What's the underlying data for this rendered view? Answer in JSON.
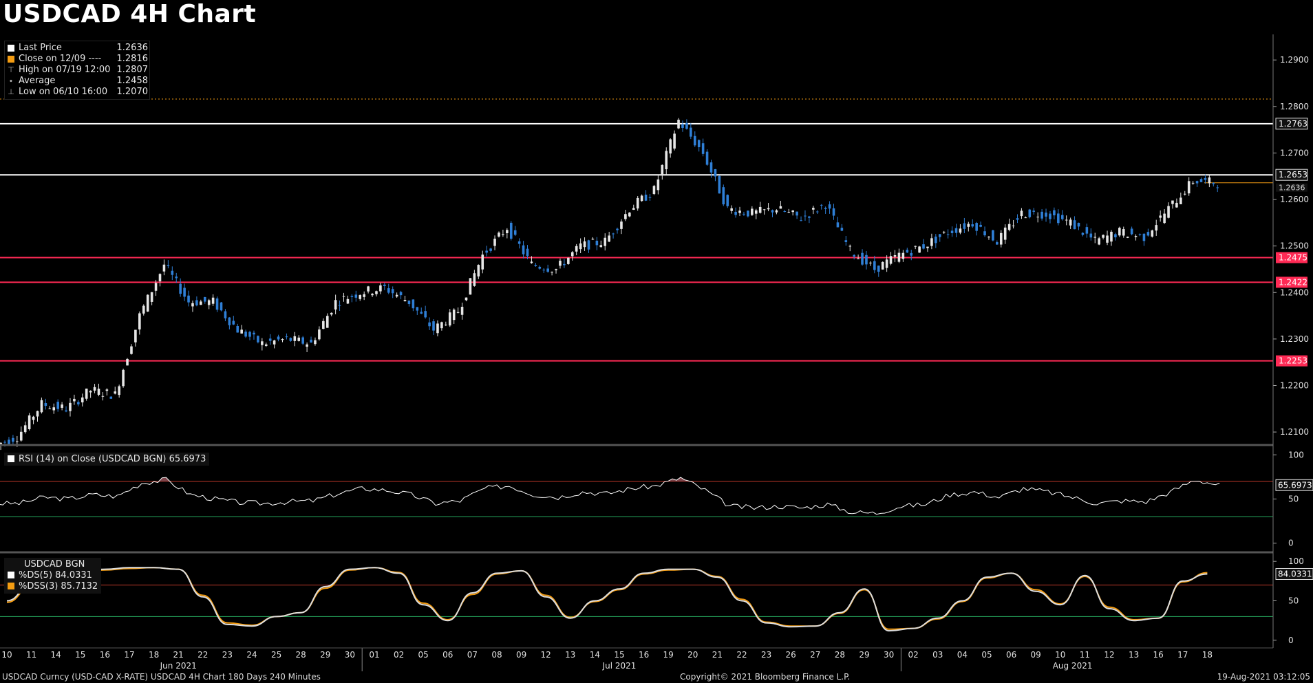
{
  "title": "USDCAD 4H Chart",
  "legend": {
    "items": [
      {
        "label": "Last Price",
        "value": "1.2636",
        "swatch": "#ffffff",
        "glyph": "square"
      },
      {
        "label": "Close on 12/09 ----",
        "value": "1.2816",
        "swatch": "#f39c12",
        "glyph": "square"
      },
      {
        "label": "High on 07/19 12:00",
        "value": "1.2807",
        "swatch": "",
        "glyph": "high"
      },
      {
        "label": "Average",
        "value": "1.2458",
        "swatch": "",
        "glyph": "avg"
      },
      {
        "label": "Low on 06/10 16:00",
        "value": "1.2070",
        "swatch": "",
        "glyph": "low"
      }
    ]
  },
  "rsi_panel": {
    "label": "RSI (14)  on Close (USDCAD BGN) 65.6973"
  },
  "dss_panel": {
    "title": "USDCAD BGN",
    "lines": [
      {
        "label": "%DS(5)  84.0331",
        "swatch": "#ffffff"
      },
      {
        "label": "%DSS(3) 85.7132",
        "swatch": "#f39c12"
      }
    ]
  },
  "footer": {
    "left": "USDCAD Curncy (USD-CAD X-RATE) USDCAD 4H Chart 180 Days 240 Minutes",
    "center": "Copyright© 2021 Bloomberg Finance L.P.",
    "right": "19-Aug-2021 03:12:05"
  },
  "colors": {
    "up": "#e6e6e6",
    "down": "#2f7fd6",
    "resistance": "#ffffff",
    "support": "#ff2a55",
    "close_line": "#f39c12",
    "rsi_line": "#ffffff",
    "overbought": "#c0392b",
    "oversold": "#27ae60"
  },
  "chart_data": [
    {
      "type": "candlestick",
      "title": "USDCAD 4H Chart",
      "ylim": [
        1.2075,
        1.2955
      ],
      "y_ticks": [
        "1.2100",
        "1.2200",
        "1.2300",
        "1.2400",
        "1.2500",
        "1.2600",
        "1.2700",
        "1.2800",
        "1.2900"
      ],
      "x_days": [
        "10",
        "11",
        "14",
        "15",
        "16",
        "17",
        "18",
        "21",
        "22",
        "23",
        "24",
        "25",
        "28",
        "29",
        "30",
        "01",
        "02",
        "05",
        "06",
        "07",
        "08",
        "09",
        "12",
        "13",
        "14",
        "15",
        "16",
        "19",
        "20",
        "21",
        "22",
        "23",
        "26",
        "27",
        "28",
        "29",
        "30",
        "02",
        "03",
        "04",
        "05",
        "06",
        "09",
        "10",
        "11",
        "12",
        "13",
        "16",
        "17",
        "18"
      ],
      "x_months": [
        "Jun 2021",
        "Jul 2021",
        "Aug 2021"
      ],
      "daily_closes": [
        1.209,
        1.216,
        1.215,
        1.219,
        1.218,
        1.235,
        1.246,
        1.238,
        1.238,
        1.232,
        1.229,
        1.23,
        1.229,
        1.238,
        1.24,
        1.241,
        1.238,
        1.232,
        1.236,
        1.248,
        1.254,
        1.246,
        1.245,
        1.25,
        1.251,
        1.258,
        1.262,
        1.277,
        1.27,
        1.258,
        1.257,
        1.258,
        1.256,
        1.259,
        1.249,
        1.245,
        1.248,
        1.25,
        1.253,
        1.255,
        1.251,
        1.257,
        1.257,
        1.255,
        1.251,
        1.253,
        1.252,
        1.258,
        1.264,
        1.2636
      ],
      "horizontal_lines": [
        {
          "label": "1.2763",
          "value": 1.2763,
          "kind": "resistance"
        },
        {
          "label": "1.2653",
          "value": 1.2653,
          "kind": "resistance"
        },
        {
          "label": "1.2475",
          "value": 1.2475,
          "kind": "support"
        },
        {
          "label": "1.2422",
          "value": 1.2422,
          "kind": "support"
        },
        {
          "label": "1.2253",
          "value": 1.2253,
          "kind": "support"
        },
        {
          "label": "1.2816",
          "value": 1.2816,
          "kind": "close-on-12-09"
        }
      ],
      "last_price": {
        "label": "1.2636",
        "value": 1.2636
      }
    },
    {
      "type": "line",
      "name": "RSI (14)",
      "ylim": [
        -8,
        108
      ],
      "y_ticks": [
        "0",
        "50",
        "100"
      ],
      "overbought": 70,
      "oversold": 30,
      "last_label": "65.6973",
      "daily_values": [
        45,
        52,
        50,
        55,
        53,
        68,
        72,
        55,
        50,
        46,
        45,
        47,
        48,
        56,
        62,
        60,
        55,
        45,
        48,
        62,
        65,
        55,
        52,
        58,
        56,
        62,
        65,
        74,
        60,
        42,
        40,
        42,
        40,
        44,
        35,
        34,
        42,
        44,
        55,
        58,
        52,
        62,
        58,
        52,
        45,
        48,
        47,
        58,
        72,
        65.7
      ]
    },
    {
      "type": "line",
      "name": "Double Smoothed Stochastic",
      "ylim": [
        -8,
        108
      ],
      "y_ticks": [
        "0",
        "50",
        "100"
      ],
      "overbought": 70,
      "oversold": 30,
      "last_label": "84.0331",
      "series": [
        {
          "name": "%DS(5)",
          "daily_values": [
            50,
            70,
            85,
            88,
            90,
            92,
            92,
            90,
            55,
            20,
            18,
            30,
            35,
            68,
            90,
            92,
            85,
            45,
            25,
            60,
            85,
            88,
            55,
            28,
            50,
            65,
            85,
            90,
            90,
            80,
            50,
            22,
            17,
            18,
            35,
            65,
            12,
            15,
            28,
            50,
            80,
            85,
            62,
            45,
            82,
            40,
            25,
            28,
            75,
            84.03
          ]
        },
        {
          "name": "%DSS(3)",
          "daily_values": [
            48,
            68,
            84,
            87,
            89,
            91,
            92,
            90,
            57,
            22,
            19,
            30,
            35,
            66,
            89,
            92,
            86,
            47,
            26,
            58,
            84,
            88,
            57,
            29,
            49,
            64,
            84,
            89,
            90,
            81,
            52,
            23,
            18,
            18,
            34,
            64,
            14,
            15,
            27,
            49,
            79,
            85,
            64,
            46,
            81,
            42,
            26,
            28,
            74,
            85.71
          ]
        }
      ]
    }
  ]
}
